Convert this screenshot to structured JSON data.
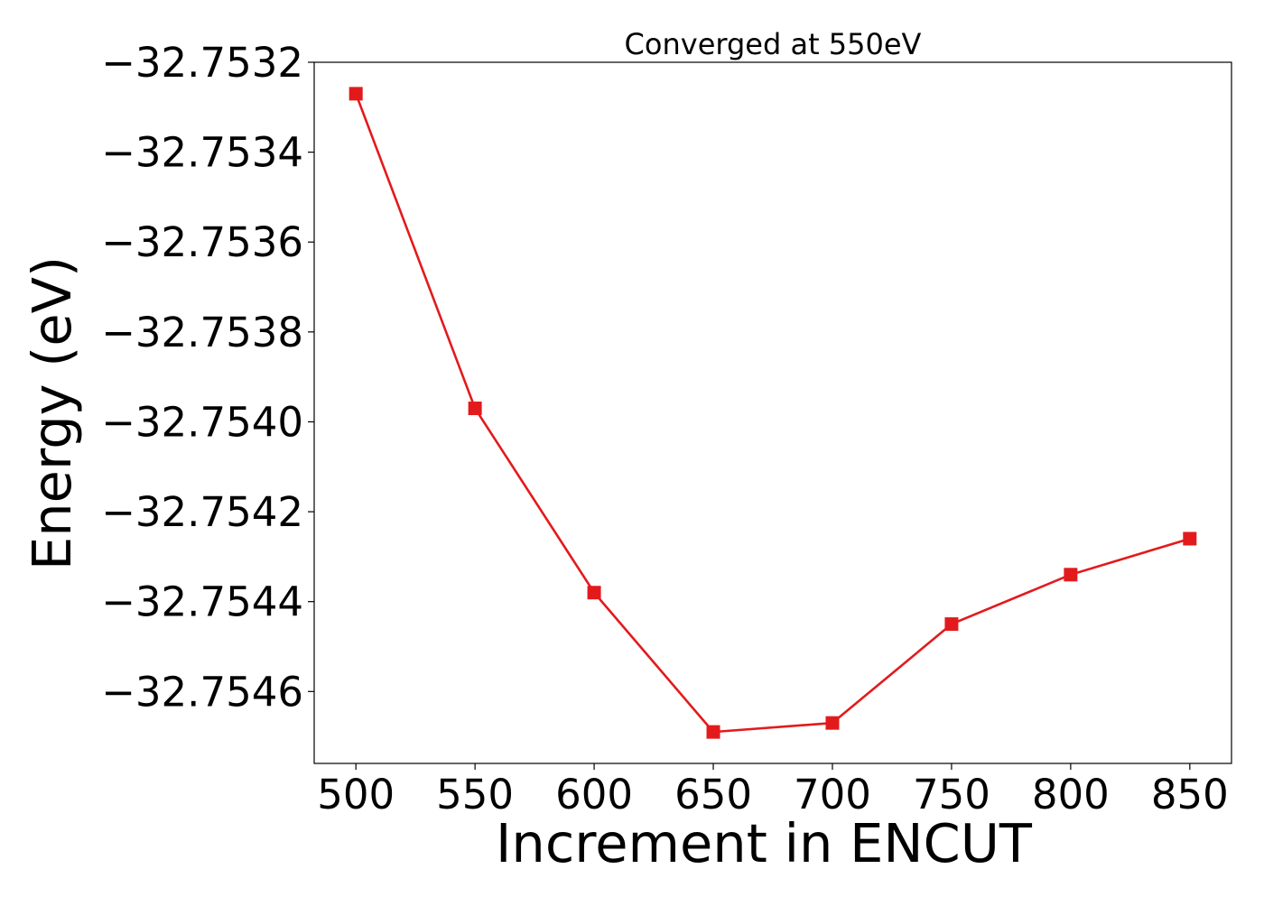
{
  "chart_data": {
    "type": "line",
    "title": "Converged at 550eV",
    "xlabel": "Increment in ENCUT",
    "ylabel": "Energy (eV)",
    "x": [
      500,
      550,
      600,
      650,
      700,
      750,
      800,
      850
    ],
    "series": [
      {
        "values": [
          -32.75327,
          -32.75397,
          -32.75438,
          -32.75469,
          -32.75467,
          -32.75445,
          -32.75434,
          -32.75426
        ],
        "color": "#e31a1c",
        "marker": "square"
      }
    ],
    "xlim": [
      482.5,
      867.5
    ],
    "ylim": [
      -32.75476,
      -32.7532
    ],
    "x_ticks": [
      500,
      550,
      600,
      650,
      700,
      750,
      800,
      850
    ],
    "x_tick_labels": [
      "500",
      "550",
      "600",
      "650",
      "700",
      "750",
      "800",
      "850"
    ],
    "y_ticks": [
      -32.7532,
      -32.7534,
      -32.7536,
      -32.7538,
      -32.754,
      -32.7542,
      -32.7544,
      -32.7546
    ],
    "y_tick_labels": [
      "−32.7532",
      "−32.7534",
      "−32.7536",
      "−32.7538",
      "−32.7540",
      "−32.7542",
      "−32.7544",
      "−32.7546"
    ],
    "grid": false,
    "legend": "none"
  }
}
